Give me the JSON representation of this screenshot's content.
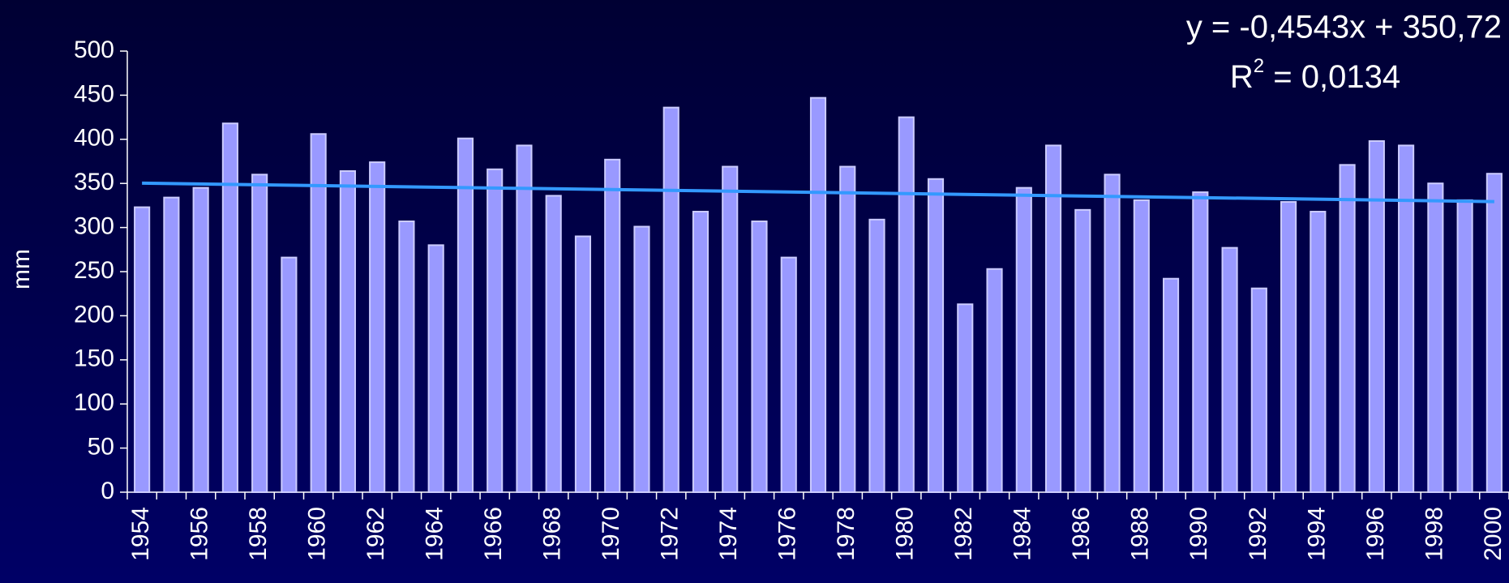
{
  "chart_data": {
    "type": "bar",
    "y_label": "mm",
    "categories": [
      "1954",
      null,
      "1956",
      null,
      "1958",
      null,
      "1960",
      null,
      "1962",
      null,
      "1964",
      null,
      "1966",
      null,
      "1968",
      null,
      "1970",
      null,
      "1972",
      null,
      "1974",
      null,
      "1976",
      null,
      "1978",
      null,
      "1980",
      null,
      "1982",
      null,
      "1984",
      null,
      "1986",
      null,
      "1988",
      null,
      "1990",
      null,
      "1992",
      null,
      "1994",
      null,
      "1996",
      null,
      "1998",
      null,
      "2000"
    ],
    "values": [
      323,
      334,
      345,
      418,
      360,
      266,
      406,
      364,
      374,
      307,
      280,
      401,
      366,
      393,
      336,
      290,
      377,
      301,
      436,
      318,
      369,
      307,
      266,
      447,
      369,
      309,
      425,
      355,
      213,
      253,
      345,
      393,
      320,
      360,
      331,
      242,
      340,
      277,
      231,
      329,
      318,
      371,
      398,
      393,
      350,
      331,
      361
    ],
    "color": "#9999ff",
    "ylim": [
      0,
      500
    ],
    "yticks": [
      0,
      50,
      100,
      150,
      200,
      250,
      300,
      350,
      400,
      450,
      500
    ],
    "trendline": {
      "slope": -0.4543,
      "intercept": 350.72,
      "color": "#3399ff",
      "label": "y = -0,4543x + 350,72"
    },
    "r2_label": [
      "R",
      "2",
      " = 0,0134"
    ]
  }
}
